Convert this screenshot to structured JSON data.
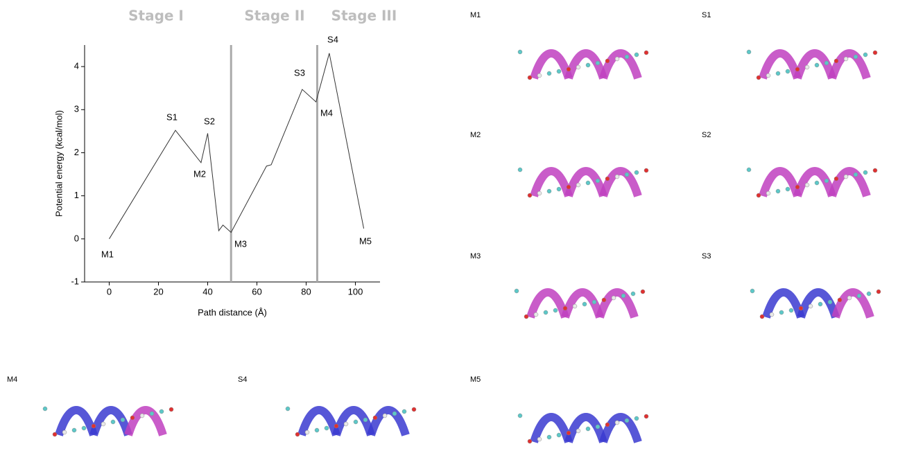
{
  "chart_data": {
    "type": "line",
    "xlabel": "Path distance (Å)",
    "ylabel": "Potential energy (kcal/mol)",
    "x": [
      0,
      26.9,
      37.3,
      40,
      44.5,
      46.2,
      49.5,
      63.9,
      65.8,
      78.4,
      84,
      89.4,
      103.4
    ],
    "values": [
      0,
      2.52,
      1.77,
      2.45,
      0.19,
      0.32,
      0.15,
      1.69,
      1.72,
      3.47,
      3.18,
      4.31,
      0.24
    ],
    "color": "#333333",
    "xlim": [
      -10,
      110
    ],
    "xticks": [
      0,
      20,
      40,
      60,
      80,
      100
    ],
    "ylim": [
      -1,
      4.5
    ],
    "yticks": [
      -1,
      0,
      1,
      2,
      3,
      4
    ],
    "stages": [
      "Stage I",
      "Stage II",
      "Stage III"
    ],
    "stage_boundaries": [
      49.5,
      84.5
    ],
    "annotations": [
      "M1",
      "S1",
      "S2",
      "M2",
      "M3",
      "S3",
      "M4",
      "S4",
      "M5"
    ]
  },
  "panels": [
    "M1",
    "S1",
    "M2",
    "S2",
    "M3",
    "S3",
    "M4",
    "S4",
    "M5"
  ]
}
